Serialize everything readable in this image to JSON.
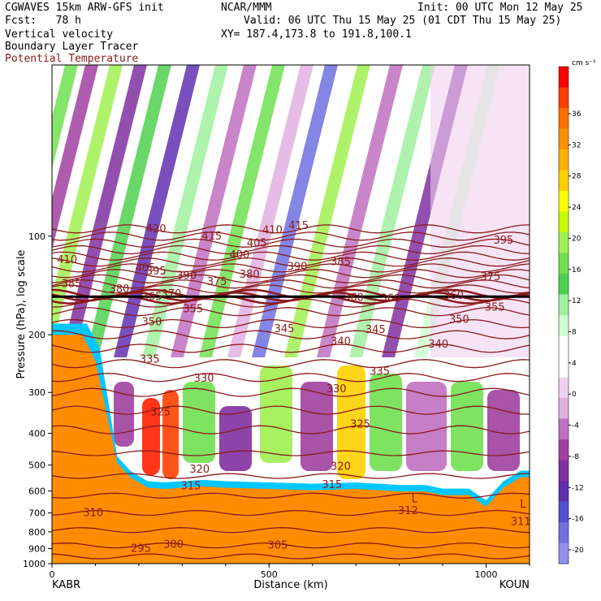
{
  "header": {
    "model": "CGWAVES 15km ARW-GFS init",
    "org": "NCAR/MMM",
    "init": "Init: 00 UTC Mon 12 May 25",
    "fcst": "Fcst:   78 h",
    "valid": "Valid: 06 UTC Thu 15 May 25 (01 CDT Thu 15 May 25)",
    "xy": "XY= 187.4,173.8 to 191.8,100.1",
    "field1": "Vertical velocity",
    "field2": "Boundary Layer Tracer",
    "field3": "Potential Temperature"
  },
  "colors": {
    "theta": "#8b1a1a",
    "terrain": "#ff8c00",
    "tracer_edge": "#00c8ff"
  },
  "chart_data": {
    "type": "heatmap",
    "title": "",
    "xlabel": "Distance (km)",
    "ylabel": "Pressure (hPa), log scale",
    "xlim": [
      0,
      1100
    ],
    "ylim": [
      1000,
      30
    ],
    "yscale": "log",
    "x_ticks": [
      0,
      500,
      1000
    ],
    "y_ticks": [
      100,
      200,
      300,
      400,
      500,
      600,
      700,
      800,
      900,
      1000
    ],
    "endpoints": {
      "left": "KABR",
      "right": "KOUN"
    },
    "colorbar": {
      "units": "cm s⁻¹",
      "ticks": [
        36,
        32,
        28,
        24,
        20,
        16,
        12,
        8,
        4,
        0,
        -4,
        -8,
        -12,
        -16,
        -20
      ],
      "colors": [
        "#ff0000",
        "#ff4000",
        "#ff7000",
        "#ff9000",
        "#ffb000",
        "#ffd000",
        "#ffff00",
        "#c8ff00",
        "#a0f050",
        "#70e050",
        "#50d050",
        "#a0f0a0",
        "#d0ffd0",
        "#ffffff",
        "#ffffff",
        "#f0d0f0",
        "#e0b0e0",
        "#c070c0",
        "#a040a0",
        "#8030a0",
        "#6030b0",
        "#5050d0",
        "#7070e0",
        "#9090f0"
      ]
    },
    "theta_labels": [
      {
        "v": "420",
        "x": 240,
        "p": 95
      },
      {
        "v": "415",
        "x": 368,
        "p": 100
      },
      {
        "v": "415",
        "x": 568,
        "p": 93
      },
      {
        "v": "410",
        "x": 35,
        "p": 118
      },
      {
        "v": "410",
        "x": 508,
        "p": 96
      },
      {
        "v": "405",
        "x": 215,
        "p": 125
      },
      {
        "v": "405",
        "x": 472,
        "p": 105
      },
      {
        "v": "400",
        "x": 432,
        "p": 114
      },
      {
        "v": "395",
        "x": 240,
        "p": 128
      },
      {
        "v": "395",
        "x": 1040,
        "p": 103
      },
      {
        "v": "390",
        "x": 310,
        "p": 132
      },
      {
        "v": "390",
        "x": 565,
        "p": 124
      },
      {
        "v": "385",
        "x": 45,
        "p": 140
      },
      {
        "v": "385",
        "x": 665,
        "p": 120
      },
      {
        "v": "380",
        "x": 155,
        "p": 145
      },
      {
        "v": "380",
        "x": 455,
        "p": 131
      },
      {
        "v": "375",
        "x": 380,
        "p": 138
      },
      {
        "v": "375",
        "x": 1010,
        "p": 133
      },
      {
        "v": "370",
        "x": 275,
        "p": 150
      },
      {
        "v": "365",
        "x": 230,
        "p": 153
      },
      {
        "v": "360",
        "x": 695,
        "p": 154
      },
      {
        "v": "360",
        "x": 780,
        "p": 155
      },
      {
        "v": "360",
        "x": 925,
        "p": 152
      },
      {
        "v": "355",
        "x": 325,
        "p": 167
      },
      {
        "v": "355",
        "x": 1020,
        "p": 165
      },
      {
        "v": "350",
        "x": 230,
        "p": 183
      },
      {
        "v": "350",
        "x": 938,
        "p": 180
      },
      {
        "v": "345",
        "x": 535,
        "p": 192
      },
      {
        "v": "345",
        "x": 745,
        "p": 193
      },
      {
        "v": "340",
        "x": 665,
        "p": 210
      },
      {
        "v": "340",
        "x": 890,
        "p": 214
      },
      {
        "v": "335",
        "x": 225,
        "p": 238
      },
      {
        "v": "335",
        "x": 755,
        "p": 259
      },
      {
        "v": "330",
        "x": 350,
        "p": 272
      },
      {
        "v": "330",
        "x": 655,
        "p": 293
      },
      {
        "v": "325",
        "x": 250,
        "p": 345
      },
      {
        "v": "325",
        "x": 710,
        "p": 375
      },
      {
        "v": "320",
        "x": 340,
        "p": 515
      },
      {
        "v": "320",
        "x": 665,
        "p": 505
      },
      {
        "v": "315",
        "x": 320,
        "p": 580
      },
      {
        "v": "315",
        "x": 645,
        "p": 575
      },
      {
        "v": "312",
        "x": 820,
        "p": 690
      },
      {
        "v": "311",
        "x": 1080,
        "p": 745
      },
      {
        "v": "310",
        "x": 95,
        "p": 700
      },
      {
        "v": "305",
        "x": 520,
        "p": 880
      },
      {
        "v": "300",
        "x": 280,
        "p": 875
      },
      {
        "v": "295",
        "x": 205,
        "p": 900
      }
    ],
    "lows": [
      {
        "v": "L",
        "x": 835,
        "p": 635
      },
      {
        "v": "L",
        "x": 1085,
        "p": 660
      }
    ],
    "terrain_profile": {
      "x": [
        0,
        100,
        150,
        180,
        220,
        260,
        300,
        350,
        400,
        500,
        600,
        700,
        800,
        860,
        900,
        960,
        1000,
        1040,
        1080,
        1100
      ],
      "p": [
        580,
        520,
        470,
        520,
        560,
        565,
        560,
        555,
        560,
        565,
        570,
        565,
        575,
        575,
        590,
        590,
        640,
        560,
        520,
        520
      ]
    }
  }
}
